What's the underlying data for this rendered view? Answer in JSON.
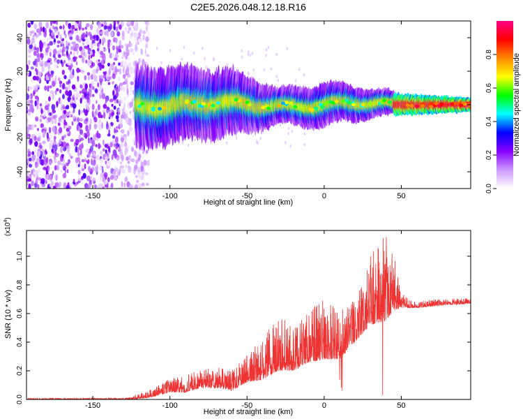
{
  "title": "C2E5.2026.048.12.18.R16",
  "chart_data": [
    {
      "type": "heatmap",
      "name": "spectrogram",
      "xlabel": "Height of straight line (km)",
      "ylabel": "Frequency (Hz)",
      "xlim": [
        -193,
        95
      ],
      "ylim": [
        -50,
        50
      ],
      "xticks": [
        -150,
        -100,
        -50,
        0,
        50
      ],
      "yticks": [
        -40,
        -20,
        0,
        20,
        40
      ],
      "colorbar": {
        "label": "Normalized spectral amplitude",
        "range": [
          0,
          1
        ],
        "ticks": [
          "0.0",
          "0.2",
          "0.4",
          "0.6",
          "0.8"
        ],
        "tick_values": [
          0.0,
          0.2,
          0.4,
          0.6,
          0.8
        ],
        "colormap": [
          "#ffffff",
          "#cc99ff",
          "#8800ff",
          "#0000ff",
          "#00ffff",
          "#00ff00",
          "#ffff00",
          "#ff8800",
          "#ff0000",
          "#ff0088"
        ]
      },
      "features": {
        "noise_region": [
          -193,
          -122
        ],
        "signal_start": -122,
        "signal_center_hz": 0,
        "signal_band_hz": [
          [
            -122,
            10
          ],
          [
            -60,
            8
          ],
          [
            -30,
            4
          ],
          [
            0,
            5
          ],
          [
            50,
            2
          ],
          [
            95,
            1
          ]
        ]
      }
    },
    {
      "type": "line",
      "name": "snr",
      "xlabel": "Height of straight line (km)",
      "ylabel": "SNR (10 * v/v)",
      "scale_label": "(x10",
      "scale_exp": "4",
      "scale_close": ")",
      "xlim": [
        -193,
        95
      ],
      "ylim": [
        0,
        1.18
      ],
      "xticks": [
        -150,
        -100,
        -50,
        0,
        50
      ],
      "yticks": [
        "0.0",
        "0.2",
        "0.4",
        "0.6",
        "0.8",
        "1.0"
      ],
      "ytick_values": [
        0.0,
        0.2,
        0.4,
        0.6,
        0.8,
        1.0
      ],
      "color": "#ee3333",
      "series": [
        {
          "name": "SNR",
          "envelope": {
            "x": [
              -193,
              -130,
              -122,
              -110,
              -100,
              -90,
              -80,
              -70,
              -60,
              -50,
              -40,
              -30,
              -20,
              -10,
              0,
              10,
              20,
              30,
              40,
              45,
              50,
              60,
              70,
              80,
              95
            ],
            "base": [
              0.0,
              0.0,
              0.0,
              0.02,
              0.05,
              0.05,
              0.08,
              0.08,
              0.06,
              0.12,
              0.14,
              0.2,
              0.2,
              0.26,
              0.28,
              0.28,
              0.4,
              0.52,
              0.55,
              0.62,
              0.64,
              0.64,
              0.65,
              0.66,
              0.67
            ],
            "spread": [
              0.01,
              0.01,
              0.03,
              0.06,
              0.1,
              0.12,
              0.14,
              0.15,
              0.14,
              0.2,
              0.28,
              0.42,
              0.3,
              0.36,
              0.42,
              0.34,
              0.3,
              0.46,
              0.6,
              0.4,
              0.1,
              0.04,
              0.05,
              0.04,
              0.04
            ]
          }
        }
      ]
    }
  ]
}
